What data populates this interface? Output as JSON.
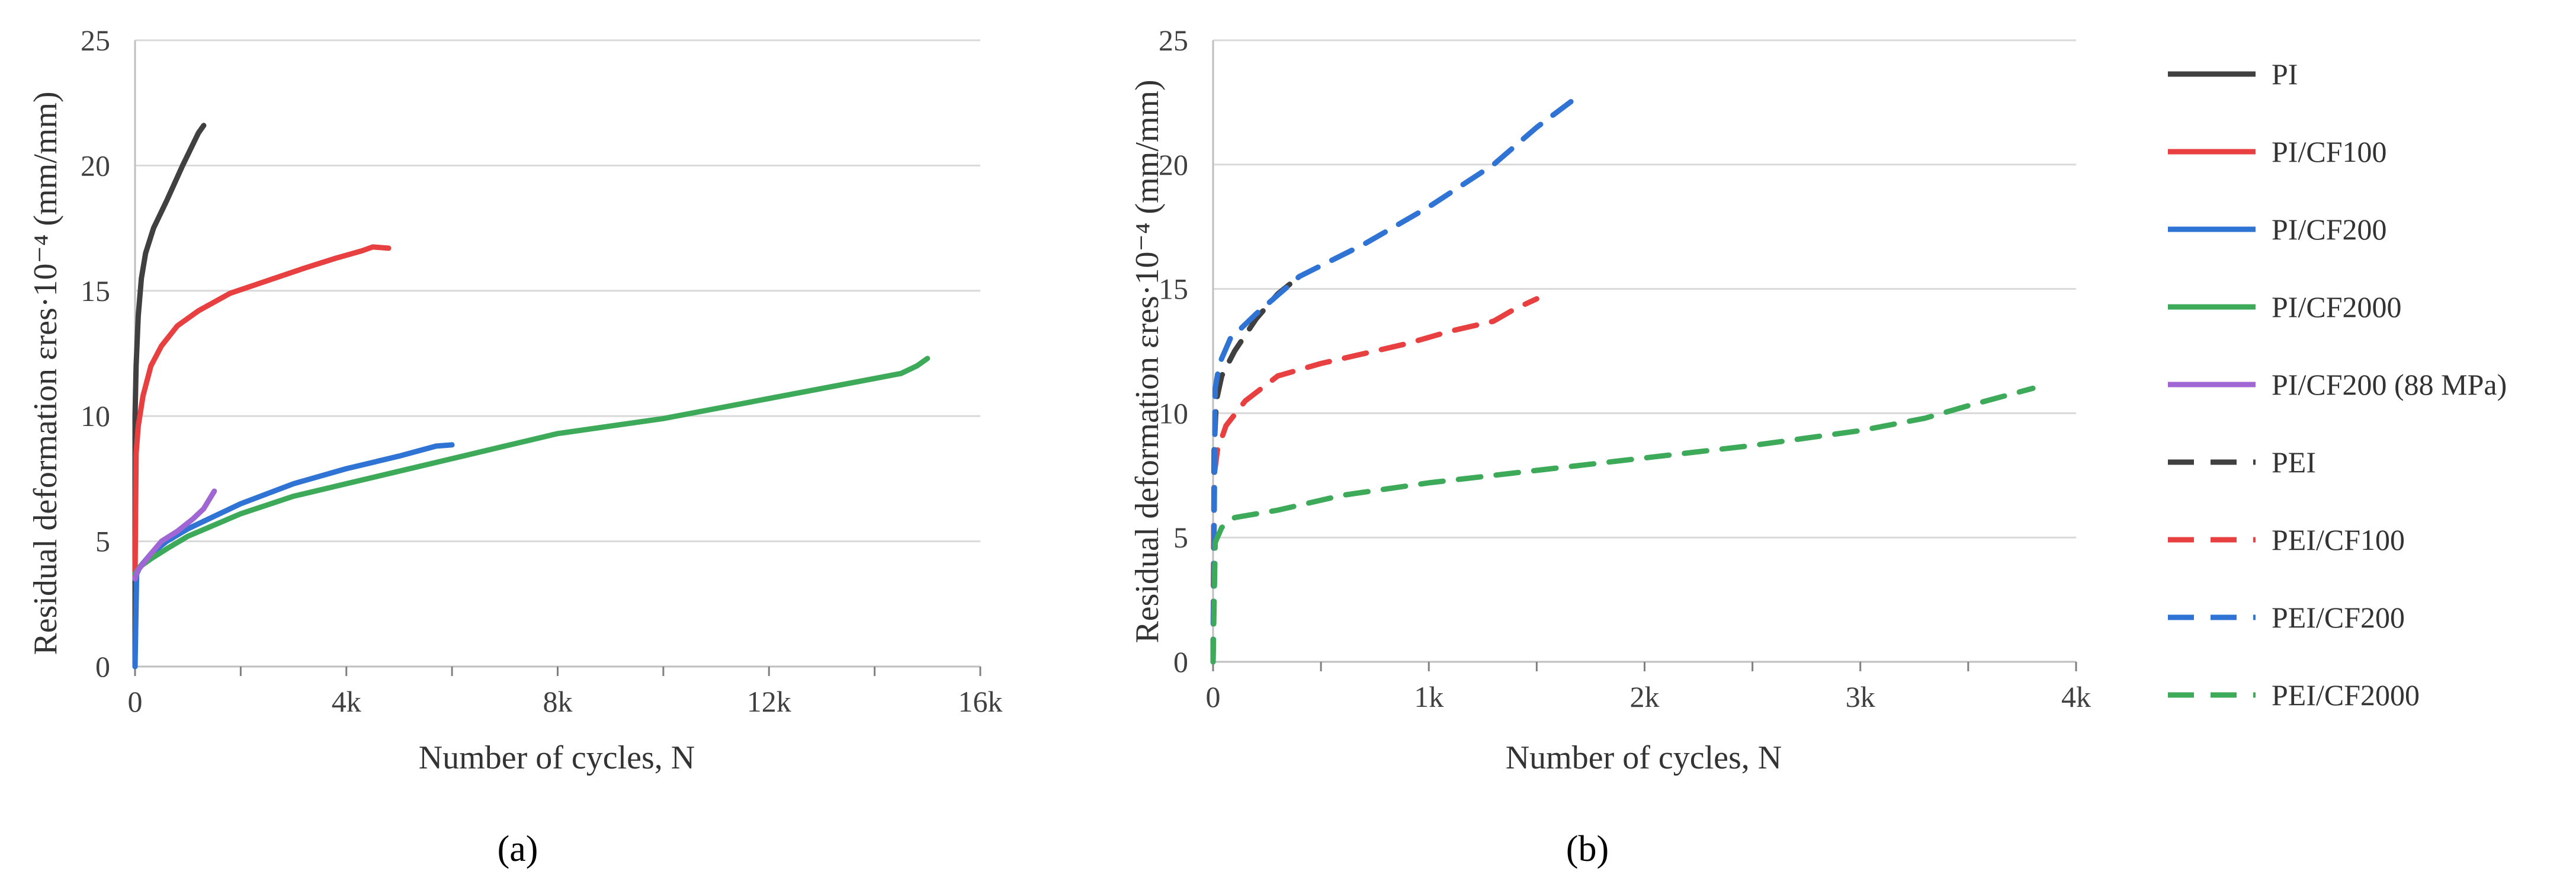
{
  "chart_data": [
    {
      "type": "line",
      "panel_label": "(a)",
      "xlabel": "Number of cycles, N",
      "ylabel": "Residual deformation εres·10⁻⁴ (mm/mm)",
      "xlim": [
        0,
        16000
      ],
      "ylim": [
        0,
        25
      ],
      "xticks": [
        0,
        4000,
        8000,
        12000,
        16000
      ],
      "xtick_labels": [
        "0",
        "4k",
        "8k",
        "12k",
        "16k"
      ],
      "yticks": [
        0,
        5,
        10,
        15,
        20,
        25
      ],
      "ytick_labels": [
        "0",
        "5",
        "10",
        "15",
        "20",
        "25"
      ],
      "grid": true,
      "series": [
        {
          "name": "PI",
          "color": "#404040",
          "dash": "solid",
          "x": [
            0,
            0,
            20,
            60,
            120,
            200,
            350,
            600,
            900,
            1200,
            1300
          ],
          "y": [
            0,
            10,
            12,
            14,
            15.5,
            16.5,
            17.5,
            18.6,
            20,
            21.3,
            21.6
          ]
        },
        {
          "name": "PI/CF100",
          "color": "#e84040",
          "dash": "solid",
          "x": [
            0,
            20,
            60,
            150,
            300,
            500,
            800,
            1200,
            1800,
            2500,
            3200,
            3800,
            4300,
            4500,
            4800
          ],
          "y": [
            3.5,
            8.5,
            9.6,
            10.8,
            12,
            12.8,
            13.6,
            14.2,
            14.9,
            15.4,
            15.9,
            16.3,
            16.6,
            16.75,
            16.7
          ]
        },
        {
          "name": "PI/CF200",
          "color": "#2f73d4",
          "dash": "solid",
          "x": [
            0,
            30,
            100,
            300,
            600,
            1000,
            2000,
            3000,
            4000,
            5000,
            5700,
            6000
          ],
          "y": [
            0,
            3.7,
            4,
            4.5,
            5,
            5.5,
            6.5,
            7.3,
            7.9,
            8.4,
            8.8,
            8.85
          ]
        },
        {
          "name": "PI/CF2000",
          "color": "#3daa5a",
          "dash": "solid",
          "x": [
            0,
            100,
            300,
            600,
            1000,
            2000,
            3000,
            4000,
            5000,
            6000,
            7000,
            8000,
            9000,
            10000,
            11000,
            12000,
            13000,
            14000,
            14500,
            14800,
            15000
          ],
          "y": [
            3.7,
            4,
            4.3,
            4.7,
            5.2,
            6.1,
            6.8,
            7.3,
            7.8,
            8.3,
            8.8,
            9.3,
            9.6,
            9.9,
            10.3,
            10.7,
            11.1,
            11.5,
            11.7,
            12,
            12.3
          ]
        },
        {
          "name": "PI/CF200 (88 MPa)",
          "color": "#a066d3",
          "dash": "solid",
          "x": [
            0,
            40,
            150,
            300,
            500,
            800,
            1100,
            1300,
            1500
          ],
          "y": [
            3.5,
            3.8,
            4.1,
            4.5,
            5,
            5.4,
            5.9,
            6.3,
            7
          ]
        }
      ]
    },
    {
      "type": "line",
      "panel_label": "(b)",
      "xlabel": "Number of cycles, N",
      "ylabel": "Residual deformation εres·10⁻⁴ (mm/mm)",
      "xlim": [
        0,
        4000
      ],
      "ylim": [
        0,
        25
      ],
      "xticks": [
        0,
        1000,
        2000,
        3000,
        4000
      ],
      "xtick_labels": [
        "0",
        "1k",
        "2k",
        "3k",
        "4k"
      ],
      "yticks": [
        0,
        5,
        10,
        15,
        20,
        25
      ],
      "ytick_labels": [
        "0",
        "5",
        "10",
        "15",
        "20",
        "25"
      ],
      "grid": true,
      "series": [
        {
          "name": "PEI",
          "color": "#404040",
          "dash": "dashed",
          "x": [
            0,
            5,
            15,
            40,
            100,
            200,
            300,
            400
          ],
          "y": [
            0,
            8.5,
            10.5,
            11.5,
            12.5,
            13.8,
            14.8,
            15.5
          ]
        },
        {
          "name": "PEI/CF100",
          "color": "#e84040",
          "dash": "dashed",
          "x": [
            0,
            5,
            20,
            60,
            150,
            300,
            500,
            700,
            900,
            1100,
            1300,
            1400,
            1500
          ],
          "y": [
            0,
            7.5,
            8.5,
            9.5,
            10.5,
            11.5,
            12,
            12.4,
            12.8,
            13.3,
            13.7,
            14.2,
            14.6
          ]
        },
        {
          "name": "PEI/CF200",
          "color": "#2f73d4",
          "dash": "dashed",
          "x": [
            0,
            10,
            30,
            80,
            200,
            400,
            700,
            1000,
            1300,
            1500,
            1700
          ],
          "y": [
            0,
            11,
            12,
            13,
            14,
            15.5,
            16.8,
            18.3,
            20,
            21.5,
            22.8
          ]
        },
        {
          "name": "PEI/CF2000",
          "color": "#3daa5a",
          "dash": "dashed",
          "x": [
            0,
            10,
            40,
            100,
            300,
            600,
            1000,
            1500,
            2000,
            2500,
            3000,
            3300,
            3500,
            3800
          ],
          "y": [
            0,
            4.8,
            5.4,
            5.8,
            6.1,
            6.7,
            7.2,
            7.7,
            8.2,
            8.7,
            9.3,
            9.8,
            10.3,
            11
          ]
        }
      ]
    }
  ]
}
